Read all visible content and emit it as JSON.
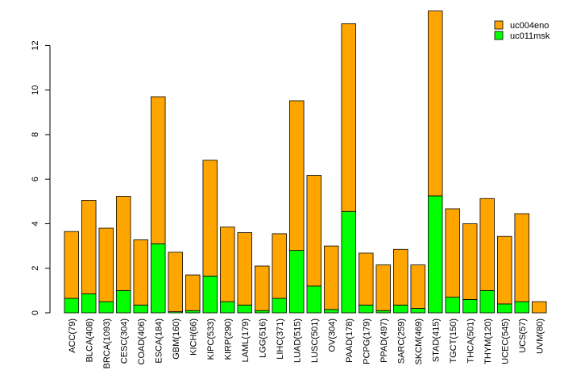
{
  "chart_data": {
    "type": "bar",
    "stacked": true,
    "title": "",
    "xlabel": "",
    "ylabel": "",
    "ylim": [
      0,
      13.5
    ],
    "yticks": [
      0,
      2,
      4,
      6,
      8,
      10,
      12
    ],
    "legend_position": "top-right",
    "categories": [
      "ACC(79)",
      "BLCA(408)",
      "BRCA(1093)",
      "CESC(304)",
      "COAD(406)",
      "ESCA(184)",
      "GBM(160)",
      "KICH(66)",
      "KIPC(533)",
      "KIRP(290)",
      "LAML(179)",
      "LGG(516)",
      "LIHC(371)",
      "LUAD(515)",
      "LUSC(501)",
      "OV(304)",
      "PAAD(178)",
      "PCPG(179)",
      "PPAD(497)",
      "SARC(259)",
      "SKCM(469)",
      "STAD(415)",
      "TGCT(150)",
      "THCA(501)",
      "THYM(120)",
      "UCEC(545)",
      "UCS(57)",
      "UVM(80)"
    ],
    "series": [
      {
        "name": "uc011msk",
        "color": "#00ff00",
        "values": [
          0.65,
          0.85,
          0.5,
          1.0,
          0.35,
          3.1,
          0.05,
          0.1,
          1.65,
          0.5,
          0.35,
          0.1,
          0.65,
          2.8,
          1.2,
          0.15,
          4.55,
          0.35,
          0.1,
          0.35,
          0.2,
          5.25,
          0.7,
          0.6,
          1.0,
          0.4,
          0.5,
          0.0
        ]
      },
      {
        "name": "uc004eno",
        "color": "#ffa500",
        "values": [
          3.0,
          4.2,
          3.3,
          4.23,
          2.93,
          6.6,
          2.67,
          1.6,
          5.2,
          3.35,
          3.25,
          2.0,
          2.9,
          6.72,
          4.97,
          2.85,
          8.43,
          2.33,
          2.05,
          2.5,
          1.95,
          8.3,
          3.97,
          3.4,
          4.13,
          3.03,
          3.95,
          0.5
        ]
      }
    ]
  }
}
